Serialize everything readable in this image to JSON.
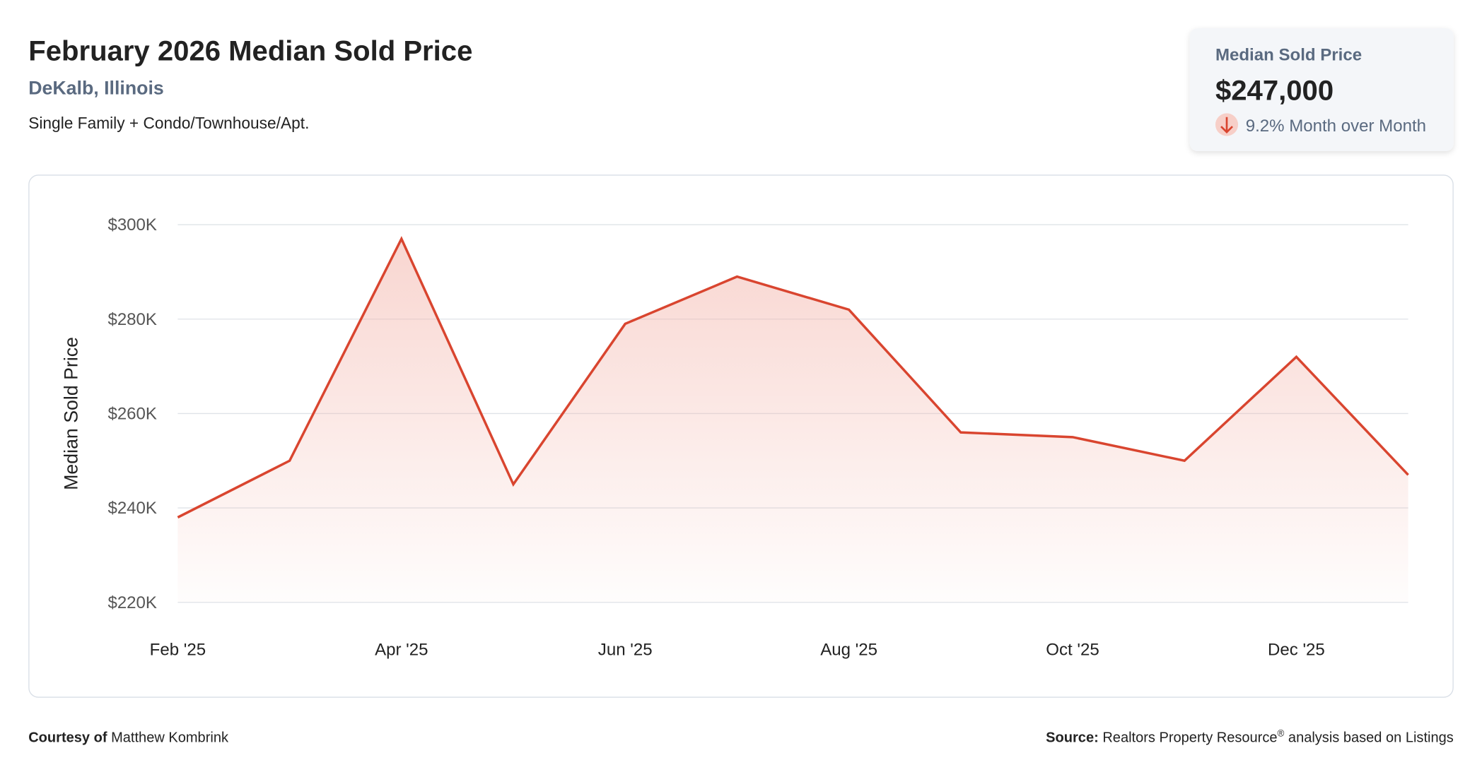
{
  "header": {
    "title": "February 2026 Median Sold Price",
    "location": "DeKalb, Illinois",
    "property_types": "Single Family + Condo/Townhouse/Apt."
  },
  "summary_card": {
    "label": "Median Sold Price",
    "value": "$247,000",
    "change": "9.2% Month over Month"
  },
  "chart_data": {
    "type": "line",
    "y_label": "Median Sold Price",
    "categories": [
      "Feb '25",
      null,
      "Apr '25",
      null,
      "Jun '25",
      null,
      "Aug '25",
      null,
      "Oct '25",
      null,
      "Dec '25",
      null
    ],
    "series": [
      {
        "name": "Median Sold Price",
        "color": "#d9452f",
        "values": [
          238000,
          250000,
          297000,
          245000,
          279000,
          289000,
          282000,
          256000,
          255000,
          250000,
          272000,
          247000
        ]
      }
    ],
    "ylim": [
      220000,
      300000
    ],
    "yticks": [
      {
        "value": 220000,
        "label": "$220K"
      },
      {
        "value": 240000,
        "label": "$240K"
      },
      {
        "value": 260000,
        "label": "$260K"
      },
      {
        "value": 280000,
        "label": "$280K"
      },
      {
        "value": 300000,
        "label": "$300K"
      }
    ],
    "grid": true
  },
  "footer": {
    "courtesy_label": "Courtesy of",
    "courtesy_name": "Matthew Kombrink",
    "source_label": "Source:",
    "source_name": "Realtors Property Resource",
    "source_mark": "®",
    "source_rest": "analysis based on Listings"
  }
}
